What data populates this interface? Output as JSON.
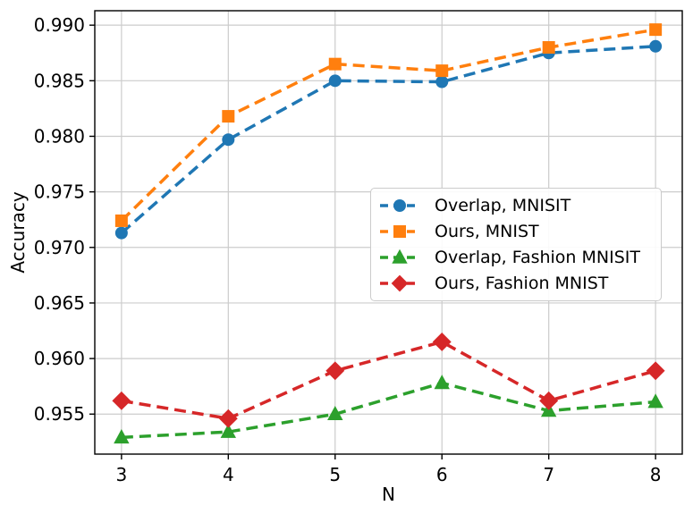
{
  "figure": {
    "background": "#ffffff"
  },
  "chart_data": {
    "type": "line",
    "title": "",
    "xlabel": "N",
    "ylabel": "Accuracy",
    "x": [
      3,
      4,
      5,
      6,
      7,
      8
    ],
    "xticks": [
      3,
      4,
      5,
      6,
      7,
      8
    ],
    "yticks": [
      0.955,
      0.96,
      0.965,
      0.97,
      0.975,
      0.98,
      0.985,
      0.99
    ],
    "xlim": [
      2.75,
      8.25
    ],
    "ylim": [
      0.9514,
      0.9913
    ],
    "grid": true,
    "grid_color": "#cccccc",
    "axis_color": "#000000",
    "line_style": "dashed",
    "legend_position": "center-right",
    "series": [
      {
        "name": "Overlap, MNISIT",
        "color": "#1f77b4",
        "marker": "circle",
        "marker_size": 14,
        "values": [
          0.9713,
          0.9797,
          0.985,
          0.9849,
          0.9875,
          0.9881
        ]
      },
      {
        "name": "Ours, MNIST",
        "color": "#ff7f0e",
        "marker": "square",
        "marker_size": 14,
        "values": [
          0.9724,
          0.9818,
          0.9865,
          0.9859,
          0.988,
          0.9896
        ]
      },
      {
        "name": "Overlap, Fashion MNISIT",
        "color": "#2ca02c",
        "marker": "triangle",
        "marker_size": 15,
        "values": [
          0.9529,
          0.9534,
          0.955,
          0.9578,
          0.9553,
          0.9561
        ]
      },
      {
        "name": "Ours, Fashion MNIST",
        "color": "#d62728",
        "marker": "diamond",
        "marker_size": 19,
        "values": [
          0.9562,
          0.9546,
          0.9589,
          0.9615,
          0.9562,
          0.9589
        ]
      }
    ]
  }
}
